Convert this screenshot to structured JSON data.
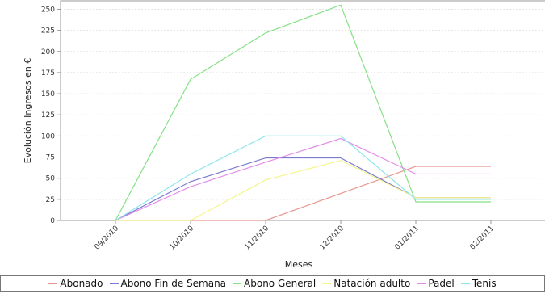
{
  "chart_data": {
    "type": "line",
    "xlabel": "Meses",
    "ylabel": "Evolución Ingresos en €",
    "categories": [
      "09/2010",
      "10/2010",
      "11/2010",
      "12/2010",
      "01/2011",
      "02/2011"
    ],
    "ylim": [
      0,
      260
    ],
    "yticks": [
      0,
      25,
      50,
      75,
      100,
      125,
      150,
      175,
      200,
      225,
      250
    ],
    "grid": true,
    "legend_position": "bottom",
    "series": [
      {
        "name": "Abonado",
        "color": "#e6968f",
        "values": [
          0,
          0,
          0,
          32,
          64,
          64
        ]
      },
      {
        "name": "Abono Fin de Semana",
        "color": "#7b7bd1",
        "values": [
          0,
          46,
          74,
          74,
          27,
          27
        ]
      },
      {
        "name": "Abono General",
        "color": "#85e085",
        "values": [
          0,
          167,
          222,
          255,
          22,
          22
        ]
      },
      {
        "name": "Natación adulto",
        "color": "#f5f58c",
        "values": [
          0,
          0,
          48,
          71,
          27,
          27
        ]
      },
      {
        "name": "Padel",
        "color": "#e28ee8",
        "values": [
          0,
          40,
          69,
          97,
          55,
          55
        ]
      },
      {
        "name": "Tenis",
        "color": "#8ee6ee",
        "values": [
          0,
          55,
          100,
          100,
          25,
          25
        ]
      }
    ]
  }
}
